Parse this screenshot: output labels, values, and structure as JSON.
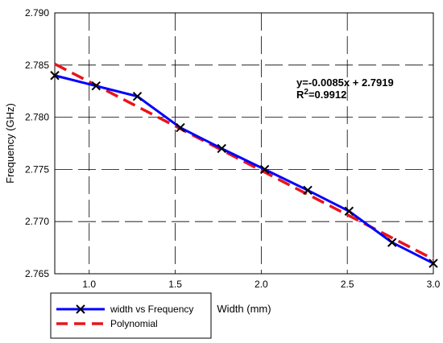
{
  "chart_data": {
    "type": "line",
    "xlabel": "Width (mm)",
    "ylabel": "Frequency (GHz)",
    "xlim": [
      0.8,
      3.0
    ],
    "ylim": [
      2.765,
      2.79
    ],
    "x_ticks": [
      1.0,
      1.5,
      2.0,
      2.5,
      3.0
    ],
    "x_tick_labels": [
      "1.0",
      "1.5",
      "2.0",
      "2.5",
      "3.0"
    ],
    "y_ticks": [
      2.765,
      2.77,
      2.775,
      2.78,
      2.785,
      2.79
    ],
    "y_tick_labels": [
      "2.765",
      "2.770",
      "2.775",
      "2.780",
      "2.785",
      "2.790"
    ],
    "grid": true,
    "legend_position": "bottom-left, outside plot",
    "series": [
      {
        "name": "width vs Frequency",
        "color": "#0000ff",
        "marker": "x",
        "x": [
          0.8,
          1.04,
          1.28,
          1.53,
          1.77,
          2.02,
          2.27,
          2.51,
          2.76,
          3.0
        ],
        "y": [
          2.784,
          2.783,
          2.782,
          2.779,
          2.777,
          2.775,
          2.773,
          2.771,
          2.768,
          2.766
        ]
      },
      {
        "name": "Polynomial",
        "color": "#e8141c",
        "style": "dashed",
        "x": [
          0.8,
          3.0
        ],
        "y": [
          2.7851,
          2.7664
        ]
      }
    ],
    "annotation": {
      "equation": "y=-0.0085x + 2.7919",
      "r2_prefix": "R",
      "r2_sup": "2",
      "r2_value": "=0.9912"
    }
  }
}
